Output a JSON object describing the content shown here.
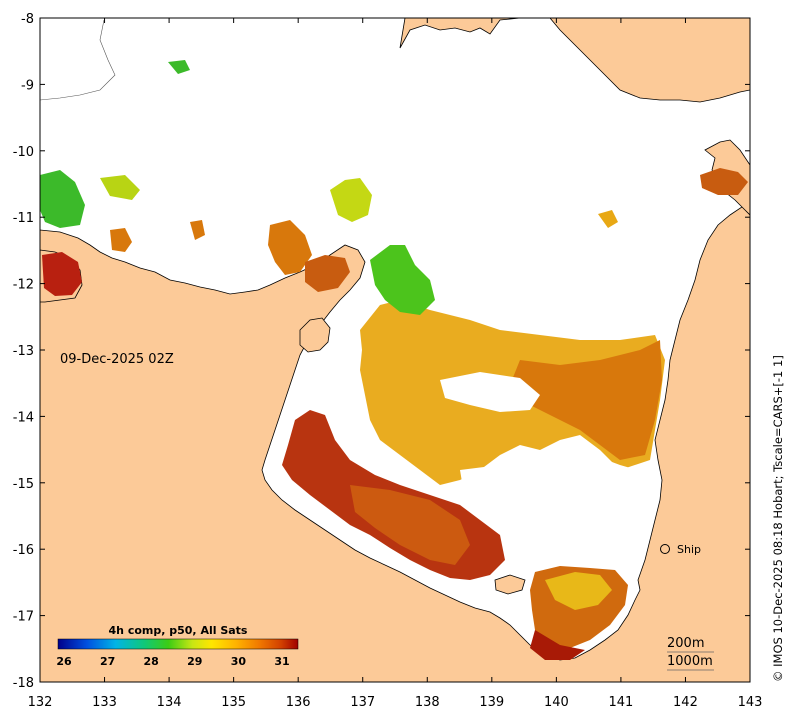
{
  "map": {
    "date_label": "09-Dec-2025 02Z",
    "credit": "© IMOS 10-Dec-2025 08:18 Hobart; Tscale=CARS+[-1 1]",
    "ship_label": "Ship",
    "depth_labels": [
      "200m",
      "1000m"
    ],
    "lon_ticks": [
      "132",
      "133",
      "134",
      "135",
      "136",
      "137",
      "138",
      "139",
      "140",
      "141",
      "142",
      "143"
    ],
    "lat_ticks": [
      "-8",
      "-9",
      "-10",
      "-11",
      "-12",
      "-13",
      "-14",
      "-15",
      "-16",
      "-17",
      "-18"
    ],
    "colorbar": {
      "title": "4h comp, p50, All Sats",
      "ticks": [
        "26",
        "27",
        "28",
        "29",
        "30",
        "31"
      ]
    },
    "colors": {
      "land": "#fcca98",
      "water_background": "#ffffff",
      "sst_warm": "#c8620a",
      "sst_hot": "#a81a06",
      "sst_mid": "#e8a010",
      "sst_cool": "#4cc41c"
    }
  }
}
